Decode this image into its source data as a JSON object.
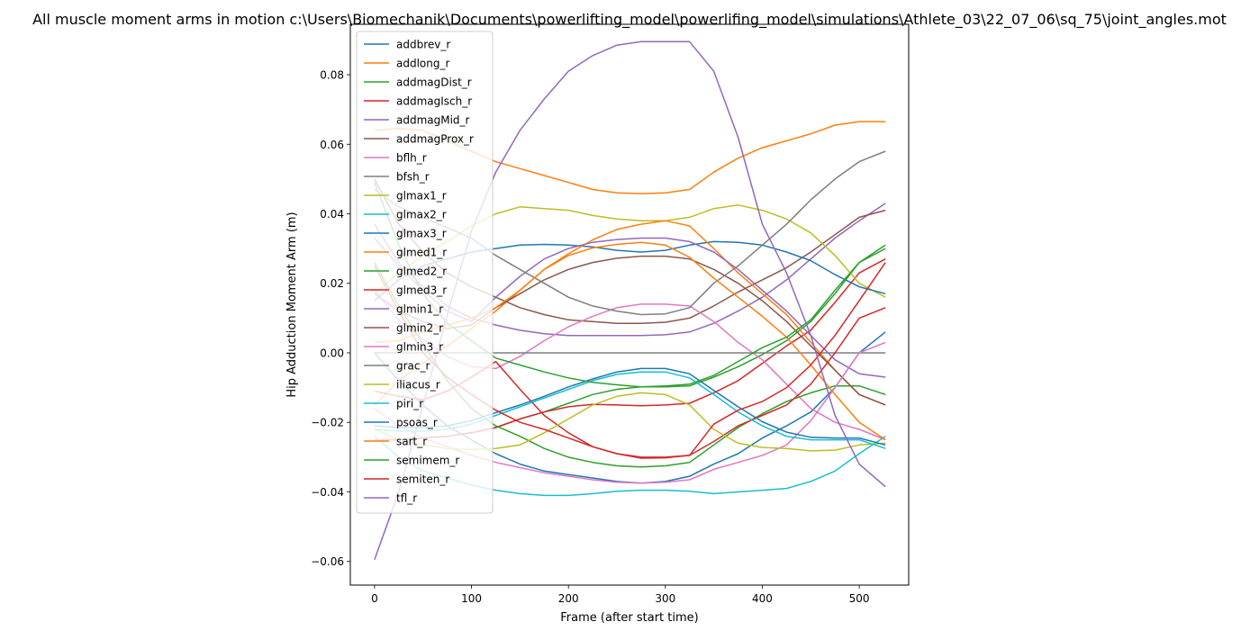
{
  "chart_data": {
    "type": "line",
    "title": "All muscle moment arms in motion c:\\Users\\Biomechanik\\Documents\\powerlifting_model\\powerlifing_model\\simulations\\Athlete_03\\22_07_06\\sq_75\\joint_angles.mot",
    "xlabel": "Frame (after start time)",
    "ylabel": "Hip Adduction Moment Arm (m)",
    "xlim": [
      -25,
      551
    ],
    "ylim": [
      -0.0668,
      0.0945
    ],
    "xticks": [
      0,
      100,
      200,
      300,
      400,
      500
    ],
    "xtick_labels": [
      "0",
      "100",
      "200",
      "300",
      "400",
      "500"
    ],
    "yticks": [
      -0.06,
      -0.04,
      -0.02,
      0.0,
      0.02,
      0.04,
      0.06,
      0.08
    ],
    "ytick_labels": [
      "−0.06",
      "−0.04",
      "−0.02",
      "0.00",
      "0.02",
      "0.04",
      "0.06",
      "0.08"
    ],
    "grid": false,
    "legend_position": "upper-left",
    "x": [
      0,
      25,
      50,
      75,
      100,
      125,
      150,
      175,
      200,
      225,
      250,
      275,
      300,
      325,
      350,
      375,
      400,
      425,
      450,
      475,
      500,
      527
    ],
    "series": [
      {
        "name": "addbrev_r",
        "color": "#1f77b4",
        "values": [
          0.0,
          -0.008,
          -0.015,
          -0.021,
          -0.025,
          -0.029,
          -0.032,
          -0.034,
          -0.035,
          -0.036,
          -0.037,
          -0.0375,
          -0.037,
          -0.0355,
          -0.032,
          -0.029,
          -0.0245,
          -0.021,
          -0.017,
          -0.01,
          0.0,
          0.006
        ]
      },
      {
        "name": "addlong_r",
        "color": "#ff7f0e",
        "values": [
          0.064,
          0.0645,
          0.064,
          0.061,
          0.058,
          0.055,
          0.053,
          0.051,
          0.049,
          0.047,
          0.046,
          0.0458,
          0.046,
          0.047,
          0.052,
          0.056,
          0.059,
          0.061,
          0.063,
          0.0655,
          0.0665,
          0.0665
        ]
      },
      {
        "name": "addmagDist_r",
        "color": "#2ca02c",
        "values": [
          -0.025,
          -0.025,
          -0.0245,
          -0.024,
          -0.023,
          -0.0215,
          -0.019,
          -0.017,
          -0.0145,
          -0.012,
          -0.0105,
          -0.0098,
          -0.0098,
          -0.0095,
          -0.007,
          -0.004,
          -0.0005,
          0.0035,
          0.009,
          0.017,
          0.026,
          0.031
        ]
      },
      {
        "name": "addmagIsch_r",
        "color": "#d62728",
        "values": [
          -0.025,
          -0.025,
          -0.0245,
          -0.024,
          -0.023,
          -0.0215,
          -0.019,
          -0.017,
          -0.0155,
          -0.0148,
          -0.015,
          -0.0152,
          -0.015,
          -0.0145,
          -0.0115,
          -0.008,
          -0.003,
          0.002,
          0.0065,
          0.0145,
          0.023,
          0.027
        ]
      },
      {
        "name": "addmagMid_r",
        "color": "#9467bd",
        "values": [
          0.037,
          0.026,
          0.019,
          0.0135,
          0.01,
          0.008,
          0.0065,
          0.0055,
          0.005,
          0.005,
          0.005,
          0.005,
          0.0052,
          0.006,
          0.0085,
          0.012,
          0.016,
          0.021,
          0.027,
          0.033,
          0.038,
          0.043
        ]
      },
      {
        "name": "addmagProx_r",
        "color": "#8c564b",
        "values": [
          0.05,
          0.037,
          0.029,
          0.023,
          0.019,
          0.016,
          0.013,
          0.011,
          0.0095,
          0.009,
          0.0085,
          0.0085,
          0.0088,
          0.01,
          0.0135,
          0.0175,
          0.021,
          0.0245,
          0.029,
          0.034,
          0.039,
          0.041
        ]
      },
      {
        "name": "bflh_r",
        "color": "#e377c2",
        "values": [
          0.018,
          0.0095,
          0.004,
          -0.001,
          -0.004,
          -0.0045,
          -0.001,
          0.0035,
          0.0075,
          0.0105,
          0.013,
          0.014,
          0.014,
          0.0135,
          0.009,
          0.003,
          -0.002,
          -0.009,
          -0.016,
          -0.02,
          -0.022,
          -0.025
        ]
      },
      {
        "name": "bfsh_r",
        "color": "#7f7f7f",
        "values": [
          0.0,
          0.0,
          0.0,
          0.0,
          0.0,
          0.0,
          0.0,
          0.0,
          0.0,
          0.0,
          0.0,
          0.0,
          0.0,
          0.0,
          0.0,
          0.0,
          0.0,
          0.0,
          0.0,
          0.0,
          0.0,
          0.0
        ]
      },
      {
        "name": "glmax1_r",
        "color": "#bcbd22",
        "values": [
          0.017,
          0.023,
          0.028,
          0.032,
          0.0365,
          0.04,
          0.042,
          0.0415,
          0.041,
          0.0395,
          0.0385,
          0.038,
          0.038,
          0.039,
          0.0415,
          0.0425,
          0.041,
          0.0385,
          0.0345,
          0.028,
          0.02,
          0.016
        ]
      },
      {
        "name": "glmax2_r",
        "color": "#17becf",
        "values": [
          -0.024,
          -0.03,
          -0.034,
          -0.036,
          -0.038,
          -0.0395,
          -0.0405,
          -0.041,
          -0.041,
          -0.0405,
          -0.0398,
          -0.0395,
          -0.0395,
          -0.0398,
          -0.0405,
          -0.04,
          -0.0395,
          -0.039,
          -0.037,
          -0.034,
          -0.029,
          -0.024
        ]
      },
      {
        "name": "glmax3_r",
        "color": "#1f77b4",
        "values": [
          0.015,
          0.021,
          0.025,
          0.027,
          0.029,
          0.03,
          0.031,
          0.0312,
          0.031,
          0.0305,
          0.0295,
          0.029,
          0.0295,
          0.031,
          0.032,
          0.0318,
          0.031,
          0.029,
          0.0265,
          0.0225,
          0.019,
          0.017
        ]
      },
      {
        "name": "glmed1_r",
        "color": "#ff7f0e",
        "values": [
          -0.015,
          -0.008,
          -0.003,
          0.002,
          0.007,
          0.012,
          0.018,
          0.024,
          0.0285,
          0.0325,
          0.0355,
          0.037,
          0.038,
          0.0365,
          0.03,
          0.023,
          0.017,
          0.011,
          0.003,
          -0.005,
          -0.012,
          -0.015
        ]
      },
      {
        "name": "glmed2_r",
        "color": "#2ca02c",
        "values": [
          0.026,
          0.0135,
          0.0025,
          -0.008,
          -0.016,
          -0.021,
          -0.024,
          -0.0275,
          -0.03,
          -0.0315,
          -0.0325,
          -0.0328,
          -0.0325,
          -0.0315,
          -0.0265,
          -0.0215,
          -0.0175,
          -0.014,
          -0.0115,
          -0.0095,
          -0.0095,
          -0.012
        ]
      },
      {
        "name": "glmed3_r",
        "color": "#d62728",
        "values": [
          -0.011,
          -0.0125,
          -0.0135,
          -0.011,
          -0.007,
          -0.0025,
          -0.0105,
          -0.018,
          -0.023,
          -0.027,
          -0.029,
          -0.0303,
          -0.0302,
          -0.0295,
          -0.0255,
          -0.021,
          -0.018,
          -0.015,
          -0.009,
          0.0,
          0.01,
          0.013
        ]
      },
      {
        "name": "glmin1_r",
        "color": "#9467bd",
        "values": [
          0.033,
          0.025,
          0.018,
          0.012,
          0.009,
          0.016,
          0.022,
          0.027,
          0.03,
          0.0318,
          0.0326,
          0.033,
          0.033,
          0.032,
          0.029,
          0.024,
          0.018,
          0.012,
          0.005,
          -0.002,
          -0.006,
          -0.007
        ]
      },
      {
        "name": "glmin2_r",
        "color": "#8c564b",
        "values": [
          0.017,
          0.012,
          0.009,
          0.007,
          0.008,
          0.013,
          0.017,
          0.021,
          0.024,
          0.026,
          0.0272,
          0.0278,
          0.0278,
          0.027,
          0.024,
          0.02,
          0.015,
          0.009,
          0.002,
          -0.005,
          -0.012,
          -0.015
        ]
      },
      {
        "name": "glmin3_r",
        "color": "#e377c2",
        "values": [
          -0.016,
          -0.021,
          -0.0245,
          -0.027,
          -0.0295,
          -0.0315,
          -0.033,
          -0.0345,
          -0.0355,
          -0.0365,
          -0.0372,
          -0.0375,
          -0.0372,
          -0.0365,
          -0.0335,
          -0.0315,
          -0.0295,
          -0.0265,
          -0.0195,
          -0.01,
          0.0,
          0.003
        ]
      },
      {
        "name": "grac_r",
        "color": "#7f7f7f",
        "values": [
          0.047,
          0.042,
          0.039,
          0.036,
          0.033,
          0.028,
          0.024,
          0.02,
          0.016,
          0.0135,
          0.012,
          0.011,
          0.0112,
          0.013,
          0.02,
          0.025,
          0.031,
          0.037,
          0.044,
          0.05,
          0.055,
          0.058
        ]
      },
      {
        "name": "iliacus_r",
        "color": "#bcbd22",
        "values": [
          -0.022,
          -0.025,
          -0.0265,
          -0.0275,
          -0.0278,
          -0.0275,
          -0.0265,
          -0.023,
          -0.019,
          -0.015,
          -0.0125,
          -0.0115,
          -0.012,
          -0.015,
          -0.022,
          -0.026,
          -0.0272,
          -0.0275,
          -0.0282,
          -0.028,
          -0.0265,
          -0.026
        ]
      },
      {
        "name": "piri_r",
        "color": "#17becf",
        "values": [
          -0.022,
          -0.0225,
          -0.0225,
          -0.022,
          -0.0205,
          -0.018,
          -0.0155,
          -0.013,
          -0.0105,
          -0.008,
          -0.0062,
          -0.0055,
          -0.0055,
          -0.0072,
          -0.012,
          -0.017,
          -0.021,
          -0.024,
          -0.025,
          -0.025,
          -0.025,
          -0.0275
        ]
      },
      {
        "name": "psoas_r",
        "color": "#1f77b4",
        "values": [
          -0.021,
          -0.0215,
          -0.0215,
          -0.021,
          -0.0195,
          -0.0172,
          -0.015,
          -0.0125,
          -0.0098,
          -0.0075,
          -0.0055,
          -0.0045,
          -0.0045,
          -0.006,
          -0.0108,
          -0.0155,
          -0.0198,
          -0.0228,
          -0.0243,
          -0.0245,
          -0.0245,
          -0.0265
        ]
      },
      {
        "name": "sart_r",
        "color": "#ff7f0e",
        "values": [
          0.003,
          0.0035,
          0.006,
          0.008,
          0.01,
          0.013,
          0.018,
          0.024,
          0.028,
          0.0302,
          0.0312,
          0.0318,
          0.031,
          0.0275,
          0.0215,
          0.016,
          0.0105,
          0.0045,
          -0.0035,
          -0.012,
          -0.02,
          -0.025
        ]
      },
      {
        "name": "semimem_r",
        "color": "#2ca02c",
        "values": [
          0.049,
          0.031,
          0.017,
          0.0085,
          0.0035,
          -0.0015,
          -0.0035,
          -0.0055,
          -0.0072,
          -0.0085,
          -0.0092,
          -0.0098,
          -0.0095,
          -0.009,
          -0.0065,
          -0.0025,
          0.0015,
          0.0045,
          0.0095,
          0.018,
          0.026,
          0.03
        ]
      },
      {
        "name": "semiten_r",
        "color": "#d62728",
        "values": [
          0.025,
          0.012,
          0.0,
          -0.007,
          -0.012,
          -0.0165,
          -0.02,
          -0.022,
          -0.0245,
          -0.027,
          -0.029,
          -0.03,
          -0.03,
          -0.0295,
          -0.0205,
          -0.0165,
          -0.014,
          -0.01,
          -0.0035,
          0.005,
          0.015,
          0.026
        ]
      },
      {
        "name": "tfl_r",
        "color": "#9467bd",
        "values": [
          -0.0595,
          -0.04,
          -0.015,
          0.011,
          0.035,
          0.052,
          0.064,
          0.073,
          0.081,
          0.0855,
          0.0885,
          0.0895,
          0.0895,
          0.0895,
          0.081,
          0.062,
          0.037,
          0.023,
          0.005,
          -0.018,
          -0.032,
          -0.0385
        ]
      }
    ]
  }
}
